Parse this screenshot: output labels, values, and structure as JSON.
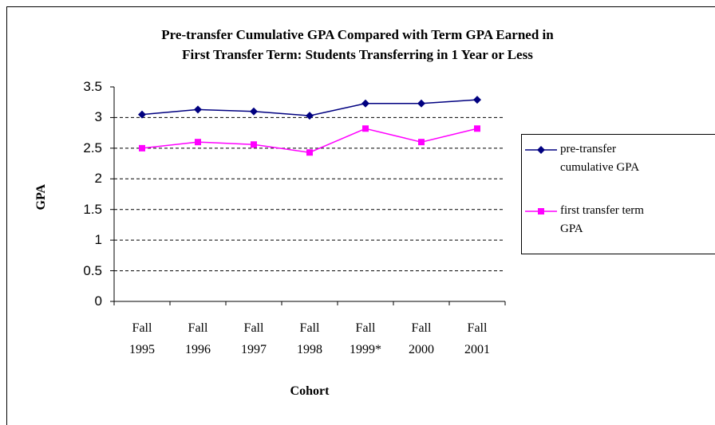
{
  "chart_data": {
    "type": "line",
    "title": "Pre-transfer Cumulative GPA Compared with Term GPA Earned in\nFirst Transfer Term: Students Transferring in 1 Year or Less",
    "x_label": "Cohort",
    "y_label": "GPA",
    "categories": [
      "Fall\n1995",
      "Fall\n1996",
      "Fall\n1997",
      "Fall\n1998",
      "Fall\n1999*",
      "Fall\n2000",
      "Fall\n2001"
    ],
    "series": [
      {
        "name": "pre-transfer\ncumulative GPA",
        "color": "#000080",
        "marker": "diamond",
        "values": [
          3.05,
          3.13,
          3.1,
          3.03,
          3.23,
          3.23,
          3.29
        ]
      },
      {
        "name": "first transfer term\nGPA",
        "color": "#ff00ff",
        "marker": "square",
        "values": [
          2.5,
          2.6,
          2.56,
          2.43,
          2.82,
          2.6,
          2.82
        ]
      }
    ],
    "ylim": [
      0,
      3.5
    ],
    "yticks": [
      0,
      0.5,
      1,
      1.5,
      2,
      2.5,
      3,
      3.5
    ],
    "grid": true,
    "legend": "right"
  }
}
